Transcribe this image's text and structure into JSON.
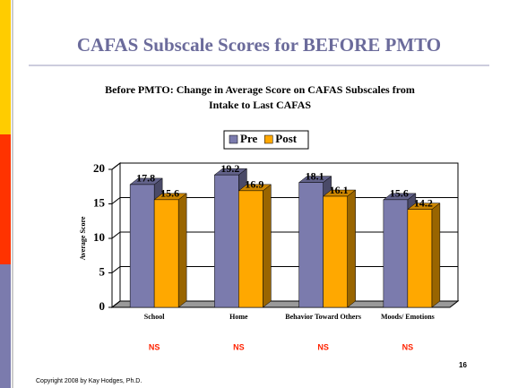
{
  "slide": {
    "title": "CAFAS Subscale Scores for BEFORE PMTO",
    "page_number": "16",
    "copyright": "Copyright 2008 by Kay Hodges, Ph.D."
  },
  "chart_data": {
    "type": "bar3d",
    "title": "Before PMTO: Change in Average Score on CAFAS Subscales from Intake to Last CAFAS",
    "ylabel": "Average Score",
    "categories": [
      "School",
      "Home",
      "Behavior Toward Others",
      "Moods/ Emotions"
    ],
    "series": [
      {
        "name": "Pre",
        "color": "#7b7bad",
        "values": [
          17.8,
          19.2,
          18.1,
          15.6
        ]
      },
      {
        "name": "Post",
        "color": "#ffa800",
        "values": [
          15.6,
          16.9,
          16.1,
          14.2
        ]
      }
    ],
    "ylim": [
      0,
      20
    ],
    "yticks": [
      0,
      5,
      10,
      15,
      20
    ],
    "grid": true,
    "annotations": [
      "NS",
      "NS",
      "NS",
      "NS"
    ]
  }
}
